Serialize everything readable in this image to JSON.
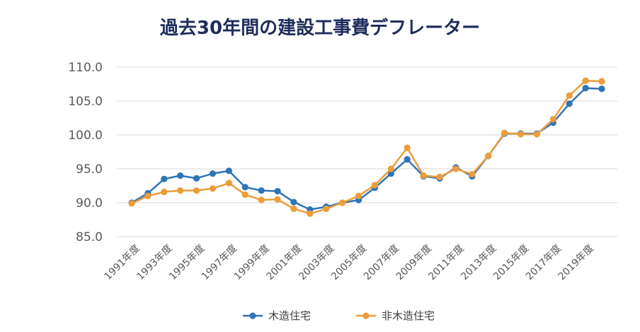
{
  "chart_data": {
    "type": "line",
    "title": "過去30年間の建設工事費デフレーター",
    "xlabel": "",
    "ylabel": "",
    "ylim": [
      85,
      110
    ],
    "yticks": [
      "110.0",
      "105.0",
      "100.0",
      "95.0",
      "90.0",
      "85.0"
    ],
    "grid": true,
    "legend_position": "bottom",
    "x": [
      "1991年度",
      "1992年度",
      "1993年度",
      "1994年度",
      "1995年度",
      "1996年度",
      "1997年度",
      "1998年度",
      "1999年度",
      "2000年度",
      "2001年度",
      "2002年度",
      "2003年度",
      "2004年度",
      "2005年度",
      "2006年度",
      "2007年度",
      "2008年度",
      "2009年度",
      "2010年度",
      "2011年度",
      "2012年度",
      "2013年度",
      "2014年度",
      "2015年度",
      "2016年度",
      "2017年度",
      "2018年度",
      "2019年度",
      "2020年度"
    ],
    "xtick_labels": [
      "1991年度",
      "1993年度",
      "1995年度",
      "1997年度",
      "1999年度",
      "2001年度",
      "2003年度",
      "2005年度",
      "2007年度",
      "2009年度",
      "2011年度",
      "2013年度",
      "2015年度",
      "2017年度",
      "2019年度"
    ],
    "series": [
      {
        "name": "木造住宅",
        "color": "#2e75b6",
        "values": [
          90.0,
          91.4,
          93.5,
          94.0,
          93.6,
          94.3,
          94.7,
          92.3,
          91.8,
          91.7,
          90.1,
          89.0,
          89.4,
          90.0,
          90.4,
          92.2,
          94.3,
          96.4,
          93.9,
          93.6,
          95.2,
          93.9,
          96.9,
          100.2,
          100.2,
          100.2,
          101.8,
          104.6,
          106.9,
          106.8
        ]
      },
      {
        "name": "非木造住宅",
        "color": "#ed9c3a",
        "values": [
          89.9,
          91.0,
          91.6,
          91.8,
          91.8,
          92.1,
          92.9,
          91.2,
          90.4,
          90.5,
          89.1,
          88.4,
          89.1,
          90.0,
          91.0,
          92.6,
          95.0,
          98.1,
          94.0,
          93.8,
          95.0,
          94.2,
          96.9,
          100.3,
          100.1,
          100.1,
          102.3,
          105.8,
          108.0,
          107.9
        ]
      }
    ]
  }
}
